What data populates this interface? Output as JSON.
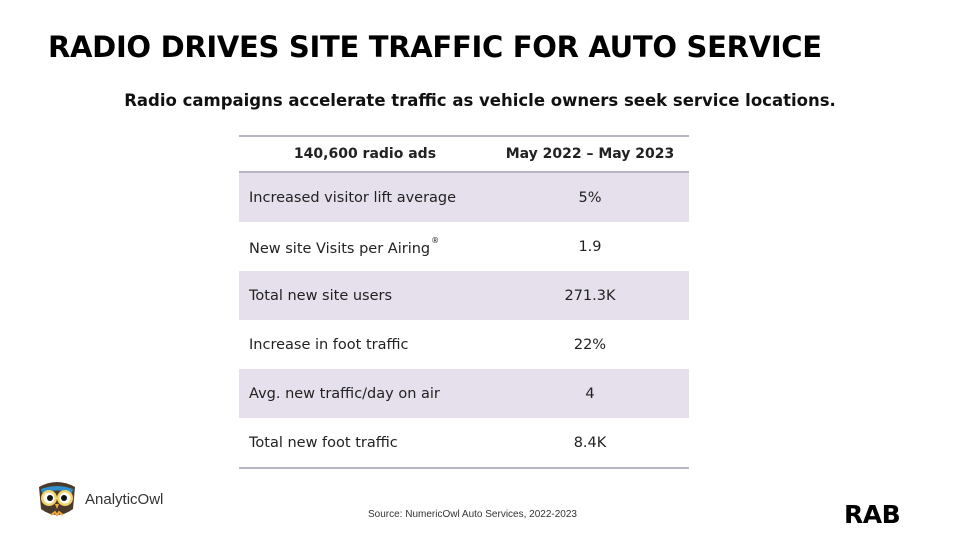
{
  "title": "RADIO DRIVES SITE TRAFFIC FOR AUTO SERVICE",
  "subtitle": "Radio campaigns accelerate traffic as vehicle owners seek service locations.",
  "table": {
    "headers": [
      "140,600 radio ads",
      "May 2022 – May 2023"
    ],
    "rows": [
      {
        "label": "Increased visitor lift average",
        "value": "5%"
      },
      {
        "label": "New site Visits per Airing",
        "sup": "®",
        "value": "1.9"
      },
      {
        "label": "Total new site users",
        "value": "271.3K"
      },
      {
        "label": "Increase in foot traffic",
        "value": "22%"
      },
      {
        "label": "Avg. new traffic/day on air",
        "value": "4"
      },
      {
        "label": "Total new foot traffic",
        "value": "8.4K"
      }
    ]
  },
  "logo": {
    "icon": "owl-icon",
    "text": "AnalyticOwl"
  },
  "source": "Source: NumericOwl Auto Services, 2022-2023",
  "brand": "RAB",
  "colors": {
    "row_shade": "#e5e0ec",
    "rule": "#b9b5c4"
  }
}
